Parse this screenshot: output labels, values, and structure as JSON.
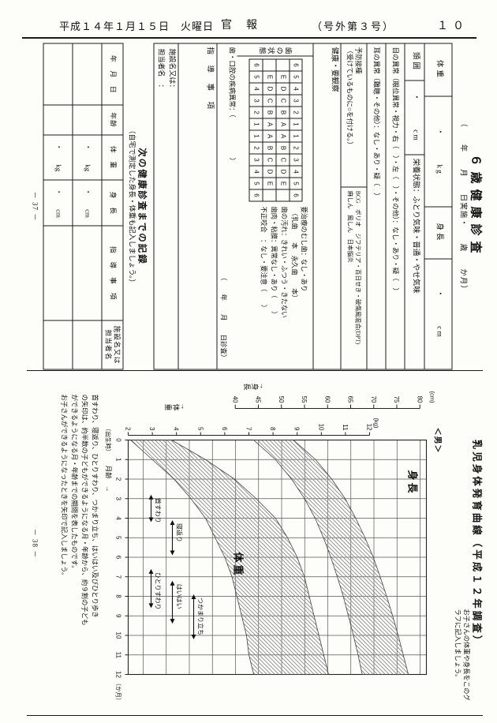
{
  "header": {
    "date": "平成１４年１月１５日　火曜日",
    "gazette": "官報",
    "issue": "（号外第３号）",
    "page": "１０"
  },
  "form_page": {
    "title": "６歳健康診査",
    "subtitle": "（　　年　　月　　日実施・　　歳　　か月）",
    "weight_label": "体重",
    "weight_value": "・　　　kg",
    "height_label": "身長",
    "height_value": "・　　　cm",
    "head_label": "頭囲",
    "head_value": "・　　　cm",
    "nutrition": "栄養状態：ふとり気味・普通・やせ気味",
    "eyes": "目の異常（眼位異常・視力・右（　）・左（　）・その他）：なし・あり・疑（　）",
    "ears": "耳の異常（難聴・その他）：なし・あり・疑（　）",
    "vaccine_label": "予防接種",
    "vaccine_note": "（受けているものに○を付ける。）",
    "vaccine_line1": "BCG　ポリオ　ジフテリア・百日せき・破傷風混合(DPT)",
    "vaccine_line2": "麻しん　風しん　日本脳炎",
    "health_label": "健康・要観察",
    "teeth": {
      "label": "歯の状態",
      "grid": [
        [
          "6",
          "5",
          "4",
          "3",
          "2",
          "1",
          "1",
          "2",
          "3",
          "4",
          "5",
          "6"
        ],
        [
          "",
          "E",
          "D",
          "C",
          "B",
          "A",
          "A",
          "B",
          "C",
          "D",
          "E",
          ""
        ],
        [
          "",
          "E",
          "D",
          "C",
          "B",
          "A",
          "A",
          "B",
          "C",
          "D",
          "E",
          ""
        ],
        [
          "6",
          "5",
          "4",
          "3",
          "2",
          "1",
          "1",
          "2",
          "3",
          "4",
          "5",
          "6"
        ]
      ],
      "notes": [
        "要治療のむし歯：なし・あり",
        "　（乳歯　　本　永久歯　　本）",
        "歯の汚れ：きれい・ふつう・きたない",
        "歯肉・粘膜：異常なし・あり（　　）",
        "不正咬合　：なし・要注意（　　）"
      ],
      "disease_line": "歯・口腔の疾病異常：（　　　　　　）",
      "exam_date": "（　　年　　月　　日診査）"
    },
    "guidance_label": "指　導　事　項",
    "facility_line1": "施設名又は：",
    "facility_line2": "担当者名　：",
    "page_no": "－ 37 －"
  },
  "record_section": {
    "heading": "次の健康診査までの記録",
    "subheading": "（自宅で測定した身長・体重も記入しましょう。）",
    "headers": [
      "年　月　日",
      "年齢",
      "体　重",
      "身　長",
      "指　導　事　項",
      "施設名又は担当者名"
    ],
    "placeholders": {
      "weight": "・　　kg",
      "height": "・　　cm"
    },
    "data_row_count": 2
  },
  "chart_page": {
    "title": "乳児身体発育曲線（平成１２年調査）",
    "subtitle": "お子さんの体重や身長をこのグラフに記入しましょう。",
    "sex": "＜男＞",
    "height_axis_label": "↑身長",
    "weight_axis_label": "↑体重",
    "note_lines": [
      "首すわり、寝返り、ひとりすわり、つかまり立ち、はいはい及びひとり歩き",
      "の矢印は、約半数の子どもができるようになる月・年齢から、約９割の子ども",
      "ができるようになる月・年齢までの期間を表したものです。",
      "お子さんができるようになったときを矢印で記入しましょう。"
    ],
    "page_no": "－ 38 －"
  },
  "chart_data": {
    "type": "area",
    "title": "乳児身体発育曲線（平成１２年調査）",
    "x": {
      "label": "月齢　→",
      "ticks": [
        0,
        1,
        2,
        3,
        4,
        5,
        6,
        7,
        8,
        9,
        10,
        11,
        12
      ],
      "birth_label": "（出生時）",
      "unit_label": "（か月）"
    },
    "y_height": {
      "label": "(cm)",
      "ticks": [
        40,
        45,
        50,
        55,
        60,
        65,
        70,
        75,
        80
      ],
      "range": [
        40,
        80
      ]
    },
    "y_weight": {
      "label": "(kg)",
      "ticks": [
        2,
        3,
        4,
        5,
        6,
        7,
        8,
        9,
        10,
        11,
        12
      ],
      "range": [
        2,
        12
      ]
    },
    "series": [
      {
        "name": "身長",
        "unit": "cm",
        "lower": [
          44.0,
          48.7,
          52.2,
          55.0,
          57.3,
          59.1,
          60.7,
          62.1,
          63.4,
          64.5,
          65.6,
          66.6,
          67.5
        ],
        "upper": [
          52.6,
          57.4,
          60.9,
          63.8,
          66.1,
          68.1,
          69.9,
          71.4,
          72.8,
          74.1,
          75.3,
          76.4,
          77.5
        ]
      },
      {
        "name": "体重",
        "unit": "kg",
        "lower": [
          2.1,
          3.0,
          3.9,
          4.6,
          5.2,
          5.6,
          6.0,
          6.3,
          6.5,
          6.7,
          6.9,
          7.0,
          7.2
        ],
        "upper": [
          3.8,
          5.2,
          6.4,
          7.3,
          8.1,
          8.6,
          9.0,
          9.3,
          9.5,
          9.7,
          9.9,
          10.1,
          10.3
        ]
      }
    ],
    "inner_labels": {
      "height": "身長",
      "weight": "体重"
    },
    "milestones": [
      {
        "name": "首すわり",
        "start": 2.8,
        "end": 4.2,
        "level": 0
      },
      {
        "name": "寝返り",
        "start": 4.1,
        "end": 5.9,
        "level": 1
      },
      {
        "name": "ひとりすわり",
        "start": 6.6,
        "end": 8.6,
        "level": 0
      },
      {
        "name": "はいはい",
        "start": 7.2,
        "end": 9.4,
        "level": 1
      },
      {
        "name": "つかまり立ち",
        "start": 7.9,
        "end": 10.2,
        "level": 2
      }
    ],
    "grid": true
  }
}
